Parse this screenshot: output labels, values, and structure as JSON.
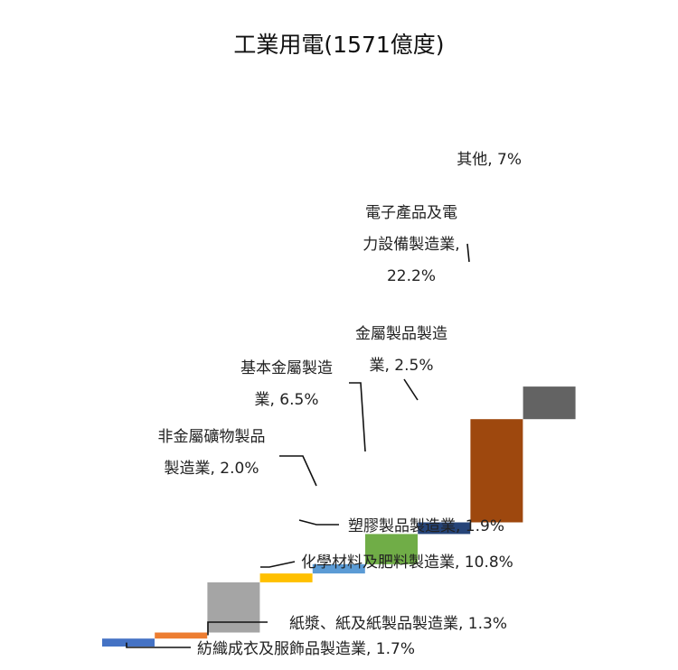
{
  "chart_data": {
    "type": "waterfall",
    "title": "工業用電(1571億度)",
    "unit": "%",
    "ylim": [
      0,
      62
    ],
    "segments": [
      {
        "name": "紡織成衣及服飾品製造業",
        "value": 1.7,
        "color": "#4472C4",
        "label_lines": [
          "紡織成衣及服飾品製造業, 1.7%"
        ]
      },
      {
        "name": "紙漿、紙及紙製品製造業",
        "value": 1.3,
        "color": "#ED7D31",
        "label_lines": [
          "紙漿、紙及紙製品製造業, 1.3%"
        ]
      },
      {
        "name": "化學材料及肥料製造業",
        "value": 10.8,
        "color": "#A5A5A5",
        "label_lines": [
          "化學材料及肥料製造業, 10.8%"
        ]
      },
      {
        "name": "塑膠製品製造業",
        "value": 1.9,
        "color": "#FFC000",
        "label_lines": [
          "塑膠製品製造業, 1.9%"
        ]
      },
      {
        "name": "非金屬礦物製品製造業",
        "value": 2.0,
        "color": "#5B9BD5",
        "label_lines": [
          "非金屬礦物製品",
          "製造業, 2.0%"
        ]
      },
      {
        "name": "基本金屬製造業",
        "value": 6.5,
        "color": "#70AD47",
        "label_lines": [
          "基本金屬製造",
          "業, 6.5%"
        ]
      },
      {
        "name": "金屬製品製造業",
        "value": 2.5,
        "color": "#264478",
        "label_lines": [
          "金屬製品製造",
          "業, 2.5%"
        ]
      },
      {
        "name": "電子產品及電力設備製造業",
        "value": 22.2,
        "color": "#9E480E",
        "label_lines": [
          "電子產品及電",
          "力設備製造業,",
          "22.2%"
        ]
      },
      {
        "name": "其他",
        "value": 7,
        "color": "#636363",
        "label_lines": [
          "其他, 7%"
        ]
      }
    ]
  }
}
